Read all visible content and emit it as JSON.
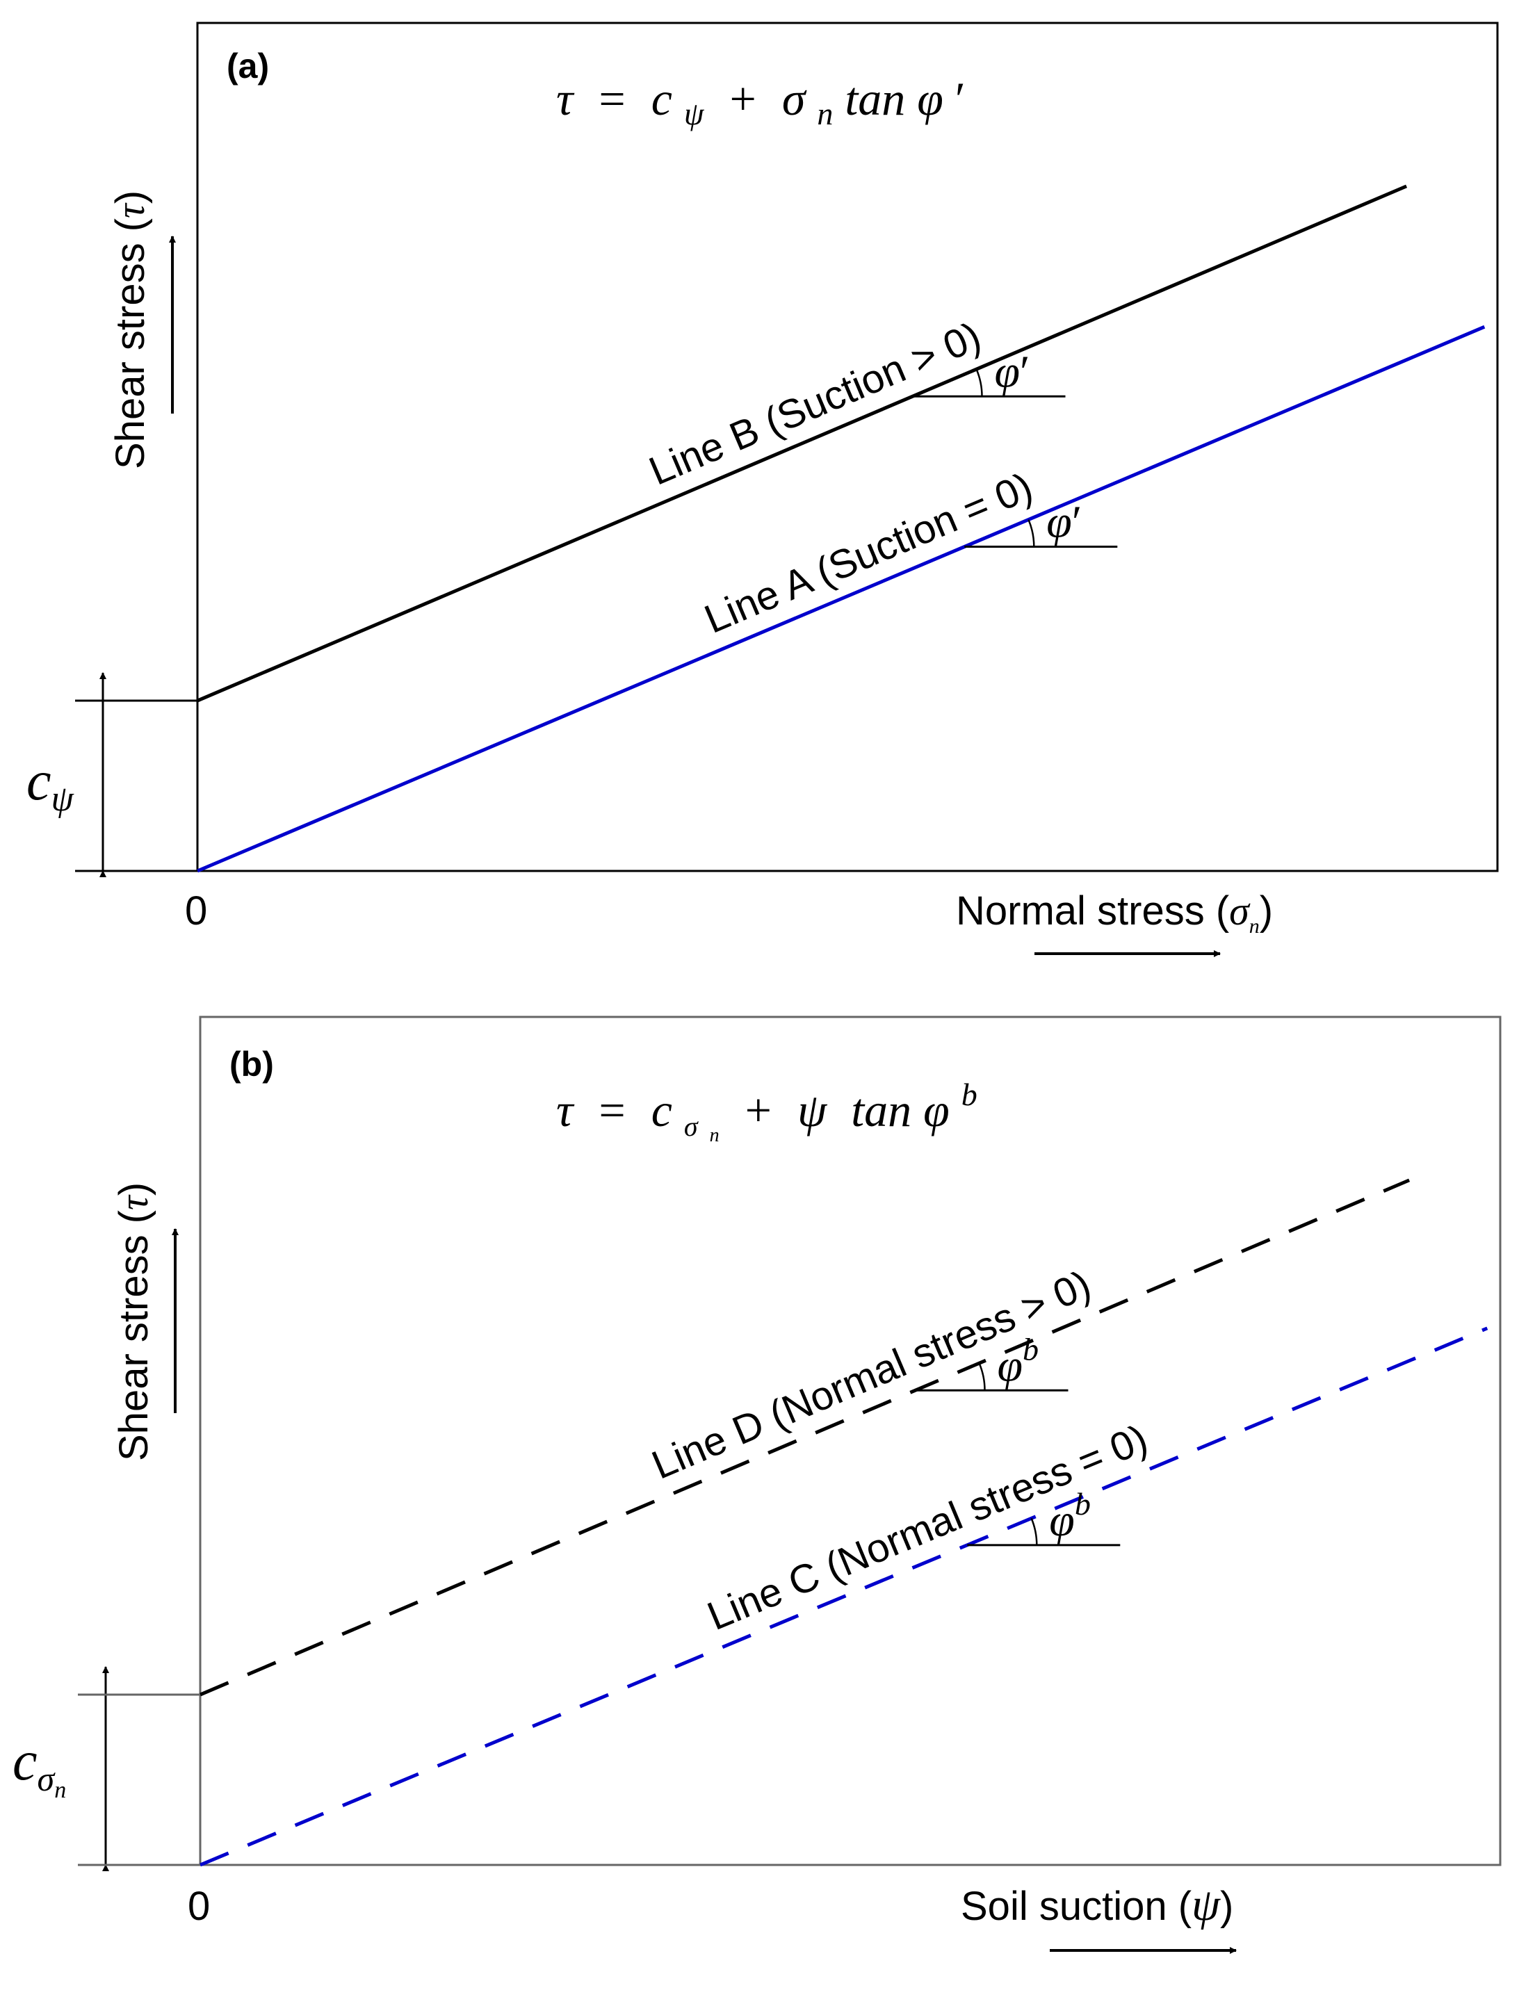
{
  "chart_data": [
    {
      "type": "line",
      "panel_label": "(a)",
      "equation": {
        "lhs": "τ",
        "eq": "=",
        "c": "c",
        "c_sub": "ψ",
        "plus": "+",
        "sigma": "σ",
        "sigma_sub": "n",
        "tan": "tan",
        "phi": "φ",
        "prime": "′"
      },
      "xlabel": "Normal stress (",
      "xlabel_sym": "σ",
      "xlabel_sub": "n",
      "xlabel_close": ")",
      "ylabel": "Shear stress (",
      "ylabel_sym": "τ",
      "ylabel_close": ")",
      "origin_label": "0",
      "intercept_symbol": "c",
      "intercept_sub": "ψ",
      "xlim": [
        0,
        100
      ],
      "ylim": [
        0,
        100
      ],
      "intercept_value": 23,
      "series": [
        {
          "name": "Line B (Suction > 0)",
          "color": "#000000",
          "dashed": false,
          "x": [
            0,
            93
          ],
          "y": [
            23,
            92.5
          ]
        },
        {
          "name": "Line A (Suction = 0)",
          "color": "#0000cc",
          "dashed": false,
          "x": [
            0,
            99
          ],
          "y": [
            0,
            73.5
          ]
        }
      ],
      "angle_labels": [
        {
          "series": "Line B (Suction > 0)",
          "phi": "φ",
          "mark": "′",
          "at_x": 55
        },
        {
          "series": "Line A (Suction = 0)",
          "phi": "φ",
          "mark": "′",
          "at_x": 59
        }
      ]
    },
    {
      "type": "line",
      "panel_label": "(b)",
      "equation": {
        "lhs": "τ",
        "eq": "=",
        "c": "c",
        "c_sub": "σ",
        "c_subsub": "n",
        "plus": "+",
        "psi": "ψ",
        "tan": "tan",
        "phi": "φ",
        "sup": "b"
      },
      "xlabel": "Soil suction (",
      "xlabel_sym": "ψ",
      "xlabel_close": ")",
      "ylabel": "Shear stress (",
      "ylabel_sym": "τ",
      "ylabel_close": ")",
      "origin_label": "0",
      "intercept_symbol": "c",
      "intercept_sub": "σ",
      "intercept_subsub": "n",
      "xlim": [
        0,
        100
      ],
      "ylim": [
        0,
        100
      ],
      "intercept_value": 23,
      "series": [
        {
          "name": "Line D (Normal stress > 0)",
          "color": "#000000",
          "dashed": true,
          "x": [
            0,
            93
          ],
          "y": [
            23,
            92.5
          ]
        },
        {
          "name": "Line C (Normal stress = 0)",
          "color": "#0000cc",
          "dashed": true,
          "x": [
            0,
            99
          ],
          "y": [
            0,
            72.5
          ]
        }
      ],
      "angle_labels": [
        {
          "series": "Line D (Normal stress > 0)",
          "phi": "φ",
          "mark": "b",
          "at_x": 55
        },
        {
          "series": "Line C (Normal stress = 0)",
          "phi": "φ",
          "mark": "b",
          "at_x": 59
        }
      ]
    }
  ]
}
